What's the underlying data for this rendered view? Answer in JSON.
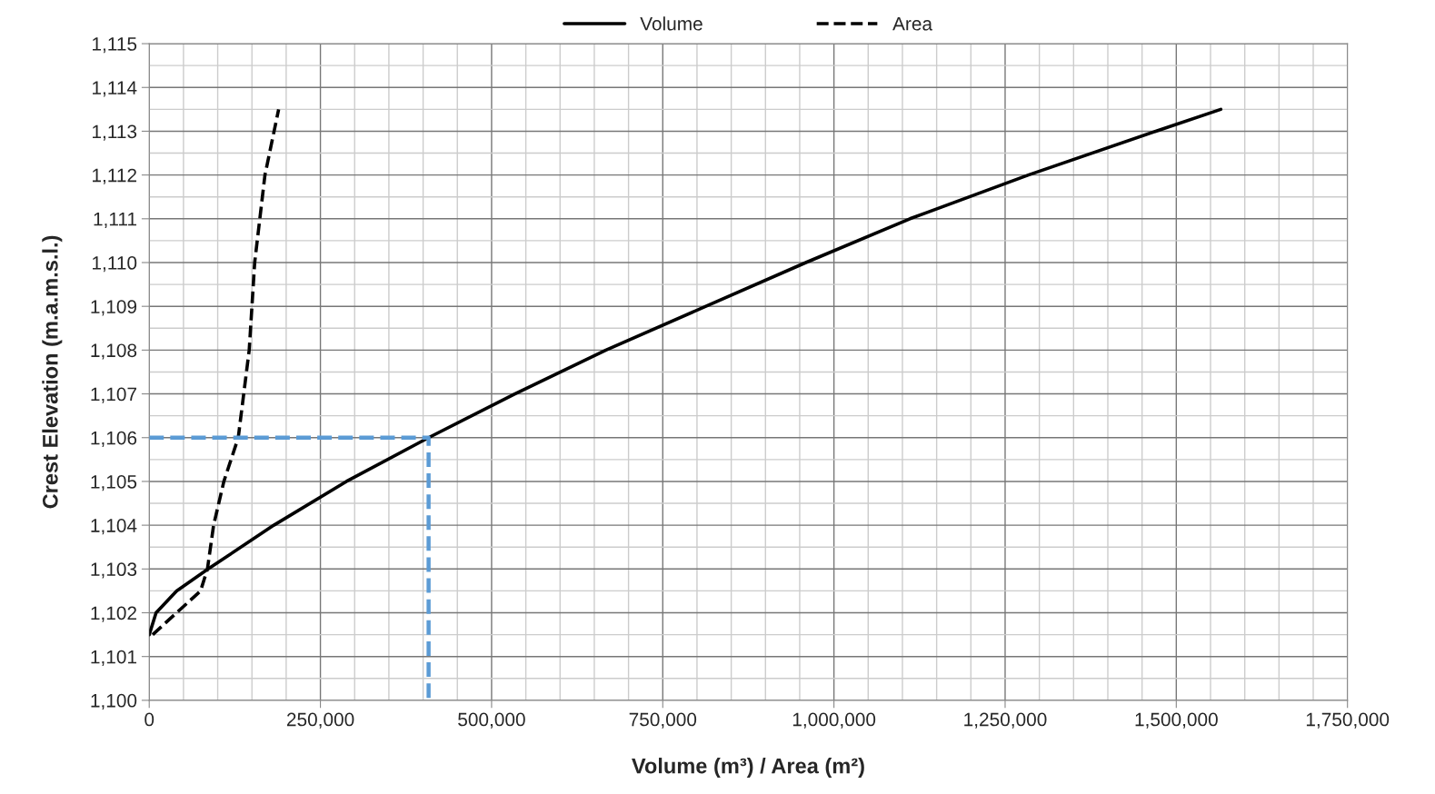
{
  "chart_data": {
    "type": "line",
    "xlabel": "Volume (m³) / Area (m²)",
    "ylabel": "Crest Elevation (m.a.m.s.l.)",
    "series": [
      {
        "name": "Volume",
        "color": "#000000",
        "line_style": "solid",
        "x": [
          0,
          10000,
          40000,
          86000,
          182000,
          288000,
          408000,
          534000,
          667000,
          813000,
          959000,
          1111000,
          1284000,
          1470000,
          1565000
        ],
        "values": [
          1101.5,
          1102.0,
          1102.5,
          1103,
          1104,
          1105,
          1106,
          1107,
          1108,
          1109,
          1110,
          1111,
          1112,
          1113,
          1113.5
        ]
      },
      {
        "name": "Area",
        "color": "#000000",
        "line_style": "dashed",
        "x": [
          5000,
          40000,
          75000,
          85000,
          94000,
          109000,
          130000,
          138000,
          146000,
          154000,
          169000,
          189000
        ],
        "values": [
          1101.5,
          1102.0,
          1102.5,
          1103,
          1104,
          1105,
          1106,
          1107,
          1108,
          1110,
          1112,
          1113.5
        ]
      },
      {
        "color": "#5b9bd5",
        "line_style": "dashed",
        "x": [
          0,
          408000,
          408000
        ],
        "values": [
          1106,
          1106,
          1100
        ]
      }
    ],
    "xlim": [
      0,
      1750000
    ],
    "ylim": [
      1100,
      1115
    ],
    "xticks": [
      {
        "value": 0,
        "label": "0"
      },
      {
        "value": 50000,
        "label": null
      },
      {
        "value": 100000,
        "label": null
      },
      {
        "value": 150000,
        "label": null
      },
      {
        "value": 200000,
        "label": null
      },
      {
        "value": 250000,
        "label": "250,000"
      },
      {
        "value": 300000,
        "label": null
      },
      {
        "value": 350000,
        "label": null
      },
      {
        "value": 400000,
        "label": null
      },
      {
        "value": 450000,
        "label": null
      },
      {
        "value": 500000,
        "label": "500,000"
      },
      {
        "value": 550000,
        "label": null
      },
      {
        "value": 600000,
        "label": null
      },
      {
        "value": 650000,
        "label": null
      },
      {
        "value": 700000,
        "label": null
      },
      {
        "value": 750000,
        "label": "750,000"
      },
      {
        "value": 800000,
        "label": null
      },
      {
        "value": 850000,
        "label": null
      },
      {
        "value": 900000,
        "label": null
      },
      {
        "value": 950000,
        "label": null
      },
      {
        "value": 1000000,
        "label": "1,000,000"
      },
      {
        "value": 1050000,
        "label": null
      },
      {
        "value": 1100000,
        "label": null
      },
      {
        "value": 1150000,
        "label": null
      },
      {
        "value": 1200000,
        "label": null
      },
      {
        "value": 1250000,
        "label": "1,250,000"
      },
      {
        "value": 1300000,
        "label": null
      },
      {
        "value": 1350000,
        "label": null
      },
      {
        "value": 1400000,
        "label": null
      },
      {
        "value": 1450000,
        "label": null
      },
      {
        "value": 1500000,
        "label": "1,500,000"
      },
      {
        "value": 1550000,
        "label": null
      },
      {
        "value": 1600000,
        "label": null
      },
      {
        "value": 1650000,
        "label": null
      },
      {
        "value": 1700000,
        "label": null
      },
      {
        "value": 1750000,
        "label": "1,750,000"
      }
    ],
    "yticks": [
      {
        "value": 1100,
        "label": "1,100"
      },
      {
        "value": 1100.5,
        "label": null
      },
      {
        "value": 1101,
        "label": "1,101"
      },
      {
        "value": 1101.5,
        "label": null
      },
      {
        "value": 1102,
        "label": "1,102"
      },
      {
        "value": 1102.5,
        "label": null
      },
      {
        "value": 1103,
        "label": "1,103"
      },
      {
        "value": 1103.5,
        "label": null
      },
      {
        "value": 1104,
        "label": "1,104"
      },
      {
        "value": 1104.5,
        "label": null
      },
      {
        "value": 1105,
        "label": "1,105"
      },
      {
        "value": 1105.5,
        "label": null
      },
      {
        "value": 1106,
        "label": "1,106"
      },
      {
        "value": 1106.5,
        "label": null
      },
      {
        "value": 1107,
        "label": "1,107"
      },
      {
        "value": 1107.5,
        "label": null
      },
      {
        "value": 1108,
        "label": "1,108"
      },
      {
        "value": 1108.5,
        "label": null
      },
      {
        "value": 1109,
        "label": "1,109"
      },
      {
        "value": 1109.5,
        "label": null
      },
      {
        "value": 1110,
        "label": "1,110"
      },
      {
        "value": 1110.5,
        "label": null
      },
      {
        "value": 1111,
        "label": "1,111"
      },
      {
        "value": 1111.5,
        "label": null
      },
      {
        "value": 1112,
        "label": "1,112"
      },
      {
        "value": 1112.5,
        "label": null
      },
      {
        "value": 1113,
        "label": "1,113"
      },
      {
        "value": 1113.5,
        "label": null
      },
      {
        "value": 1114,
        "label": "1,114"
      },
      {
        "value": 1114.5,
        "label": null
      },
      {
        "value": 1115,
        "label": "1,115"
      }
    ],
    "grid": true,
    "legend": "top",
    "marker": "none"
  }
}
